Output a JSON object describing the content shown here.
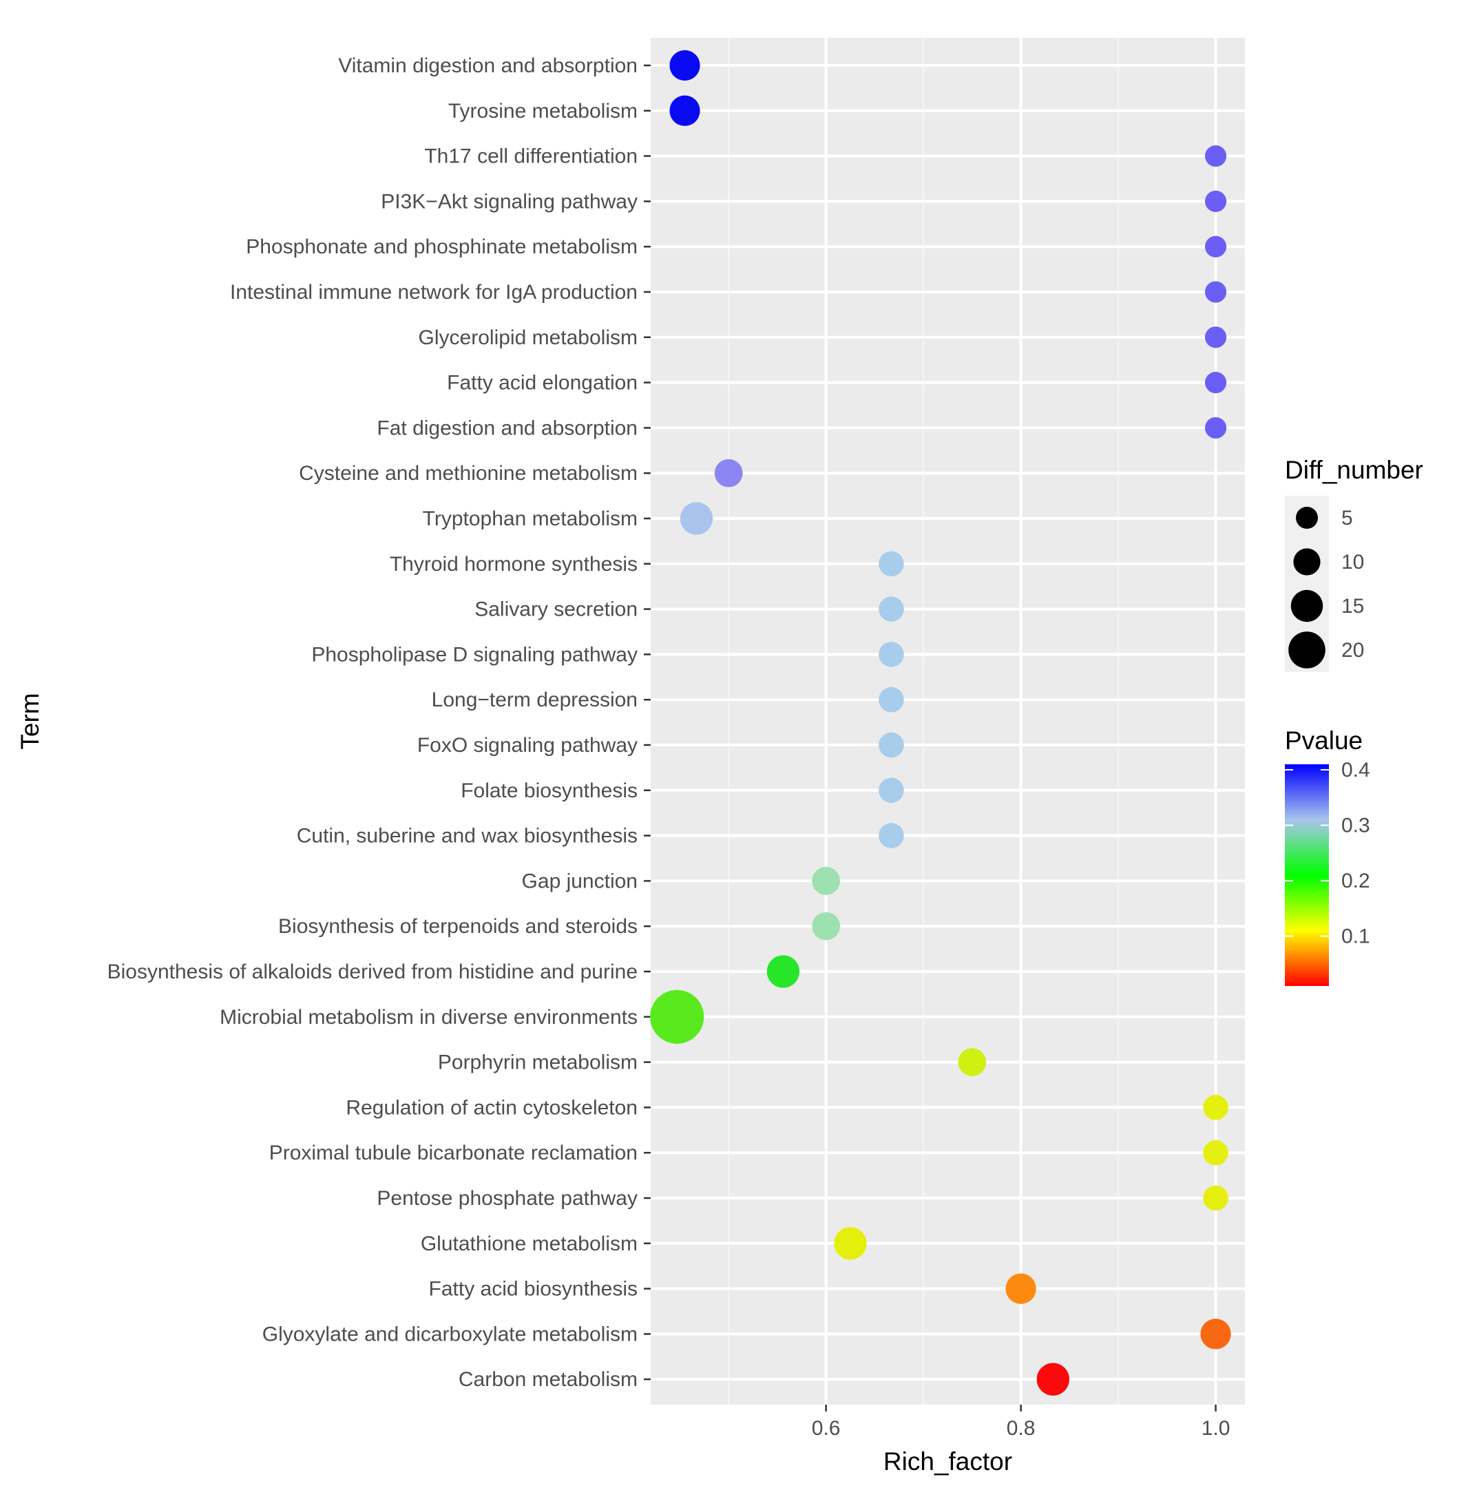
{
  "chart_data": {
    "type": "scatter",
    "xlabel": "Rich_factor",
    "ylabel": "Term",
    "xlim": [
      0.42,
      1.03
    ],
    "x_ticks": [
      {
        "value": 0.6,
        "label": "0.6"
      },
      {
        "value": 0.8,
        "label": "0.8"
      },
      {
        "value": 1.0,
        "label": "1.0"
      }
    ],
    "terms": [
      {
        "term": "Vitamin digestion and absorption",
        "rich_factor": 0.455,
        "pvalue": 0.4,
        "diff_number": 4,
        "color": "#0a0af2"
      },
      {
        "term": "Tyrosine metabolism",
        "rich_factor": 0.455,
        "pvalue": 0.4,
        "diff_number": 4,
        "color": "#0a0af2"
      },
      {
        "term": "Th17 cell differentiation",
        "rich_factor": 1.0,
        "pvalue": 0.37,
        "diff_number": 1,
        "color": "#6b5ef5"
      },
      {
        "term": "PI3K−Akt signaling pathway",
        "rich_factor": 1.0,
        "pvalue": 0.37,
        "diff_number": 1,
        "color": "#6b5ef5"
      },
      {
        "term": "Phosphonate and phosphinate metabolism",
        "rich_factor": 1.0,
        "pvalue": 0.37,
        "diff_number": 1,
        "color": "#6b5ef5"
      },
      {
        "term": "Intestinal immune network for IgA production",
        "rich_factor": 1.0,
        "pvalue": 0.37,
        "diff_number": 1,
        "color": "#6b5ef5"
      },
      {
        "term": "Glycerolipid metabolism",
        "rich_factor": 1.0,
        "pvalue": 0.37,
        "diff_number": 1,
        "color": "#6b5ef5"
      },
      {
        "term": "Fatty acid elongation",
        "rich_factor": 1.0,
        "pvalue": 0.37,
        "diff_number": 1,
        "color": "#6b5ef5"
      },
      {
        "term": "Fat digestion and absorption",
        "rich_factor": 1.0,
        "pvalue": 0.37,
        "diff_number": 1,
        "color": "#6b5ef5"
      },
      {
        "term": "Cysteine and methionine metabolism",
        "rich_factor": 0.5,
        "pvalue": 0.36,
        "diff_number": 3,
        "color": "#8c86f2"
      },
      {
        "term": "Tryptophan metabolism",
        "rich_factor": 0.467,
        "pvalue": 0.32,
        "diff_number": 5,
        "color": "#a9c4ec"
      },
      {
        "term": "Thyroid hormone synthesis",
        "rich_factor": 0.667,
        "pvalue": 0.31,
        "diff_number": 2,
        "color": "#a8ccec"
      },
      {
        "term": "Salivary secretion",
        "rich_factor": 0.667,
        "pvalue": 0.31,
        "diff_number": 2,
        "color": "#a8ccec"
      },
      {
        "term": "Phospholipase D signaling pathway",
        "rich_factor": 0.667,
        "pvalue": 0.31,
        "diff_number": 2,
        "color": "#a8ccec"
      },
      {
        "term": "Long−term depression",
        "rich_factor": 0.667,
        "pvalue": 0.31,
        "diff_number": 2,
        "color": "#a8ccec"
      },
      {
        "term": "FoxO signaling pathway",
        "rich_factor": 0.667,
        "pvalue": 0.31,
        "diff_number": 2,
        "color": "#a8ccec"
      },
      {
        "term": "Folate biosynthesis",
        "rich_factor": 0.667,
        "pvalue": 0.31,
        "diff_number": 2,
        "color": "#a8ccec"
      },
      {
        "term": "Cutin, suberine and wax biosynthesis",
        "rich_factor": 0.667,
        "pvalue": 0.31,
        "diff_number": 2,
        "color": "#a8ccec"
      },
      {
        "term": "Gap junction",
        "rich_factor": 0.6,
        "pvalue": 0.27,
        "diff_number": 3,
        "color": "#9ee0b0"
      },
      {
        "term": "Biosynthesis of terpenoids and steroids",
        "rich_factor": 0.6,
        "pvalue": 0.27,
        "diff_number": 3,
        "color": "#9ee0b0"
      },
      {
        "term": "Biosynthesis of alkaloids derived from histidine and purine",
        "rich_factor": 0.556,
        "pvalue": 0.21,
        "diff_number": 5,
        "color": "#27e62a"
      },
      {
        "term": "Microbial metabolism in diverse environments",
        "rich_factor": 0.447,
        "pvalue": 0.19,
        "diff_number": 21,
        "color": "#58ea1c"
      },
      {
        "term": "Porphyrin metabolism",
        "rich_factor": 0.75,
        "pvalue": 0.15,
        "diff_number": 3,
        "color": "#d0f012"
      },
      {
        "term": "Regulation of actin cytoskeleton",
        "rich_factor": 1.0,
        "pvalue": 0.13,
        "diff_number": 2,
        "color": "#e6f010"
      },
      {
        "term": "Proximal tubule bicarbonate reclamation",
        "rich_factor": 1.0,
        "pvalue": 0.13,
        "diff_number": 2,
        "color": "#e6f010"
      },
      {
        "term": "Pentose phosphate pathway",
        "rich_factor": 1.0,
        "pvalue": 0.13,
        "diff_number": 2,
        "color": "#e6f010"
      },
      {
        "term": "Glutathione metabolism",
        "rich_factor": 0.625,
        "pvalue": 0.13,
        "diff_number": 5,
        "color": "#e4f00c"
      },
      {
        "term": "Fatty acid biosynthesis",
        "rich_factor": 0.8,
        "pvalue": 0.07,
        "diff_number": 4,
        "color": "#fc8a10"
      },
      {
        "term": "Glyoxylate and dicarboxylate metabolism",
        "rich_factor": 1.0,
        "pvalue": 0.06,
        "diff_number": 4,
        "color": "#f86812"
      },
      {
        "term": "Carbon metabolism",
        "rich_factor": 0.833,
        "pvalue": 0.01,
        "diff_number": 5,
        "color": "#fa0a0a"
      }
    ],
    "size_legend": {
      "title": "Diff_number",
      "entries": [
        {
          "value": 5,
          "label": "5"
        },
        {
          "value": 10,
          "label": "10"
        },
        {
          "value": 15,
          "label": "15"
        },
        {
          "value": 20,
          "label": "20"
        }
      ]
    },
    "color_legend": {
      "title": "Pvalue",
      "range": [
        0.01,
        0.41
      ],
      "colors": [
        "#ff0000",
        "#ffff00",
        "#00ff00",
        "#a9c4ec",
        "#0000ff"
      ],
      "ticks": [
        {
          "value": 0.4,
          "label": "0.4"
        },
        {
          "value": 0.3,
          "label": "0.3"
        },
        {
          "value": 0.2,
          "label": "0.2"
        },
        {
          "value": 0.1,
          "label": "0.1"
        }
      ]
    },
    "colors": {
      "panel_background": "#ebebeb",
      "grid_major": "#ffffff",
      "grid_minor": "#f5f5f5",
      "legend_key_background": "#f0f0f0"
    }
  }
}
